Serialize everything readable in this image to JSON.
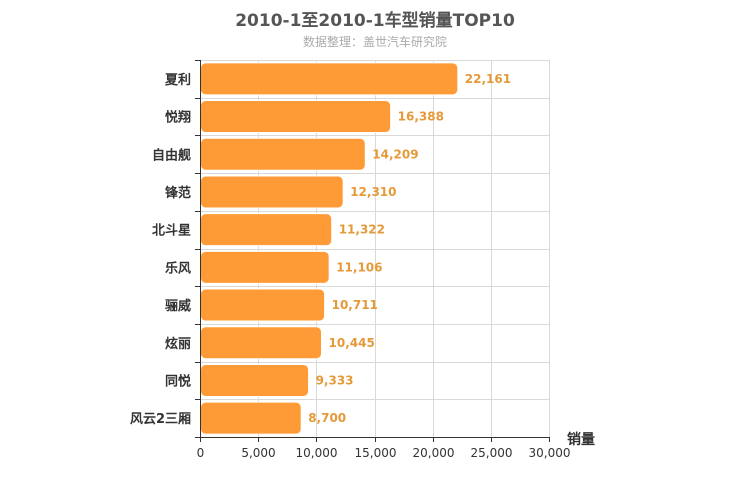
{
  "chart_data": {
    "type": "bar",
    "orientation": "horizontal",
    "title": "2010-1至2010-1车型销量TOP10",
    "subtitle": "数据整理：盖世汽车研究院",
    "xlabel": "销量",
    "ylabel": "",
    "categories": [
      "夏利",
      "悦翔",
      "自由舰",
      "锋范",
      "北斗星",
      "乐风",
      "骊威",
      "炫丽",
      "同悦",
      "风云2三厢"
    ],
    "values": [
      22161,
      16388,
      14209,
      12310,
      11322,
      11106,
      10711,
      10445,
      9333,
      8700
    ],
    "data_labels": [
      "22,161",
      "16,388",
      "14,209",
      "12,310",
      "11,322",
      "11,106",
      "10,711",
      "10,445",
      "9,333",
      "8,700"
    ],
    "xlim": [
      0,
      30000
    ],
    "x_ticks": [
      0,
      5000,
      10000,
      15000,
      20000,
      25000,
      30000
    ],
    "x_tick_labels": [
      "0",
      "5,000",
      "10,000",
      "15,000",
      "20,000",
      "25,000",
      "30,000"
    ],
    "grid": true,
    "legend": "none",
    "colors": {
      "bar": "#FF9B36",
      "bar_stroke": "#FFFFFF",
      "data_label": "#E59A3A",
      "grid": "#D9D9D9",
      "axis": "#333333",
      "category_label": "#333333",
      "tick_label": "#333333",
      "title": "#555555",
      "subtitle": "#AAAAAA"
    }
  }
}
